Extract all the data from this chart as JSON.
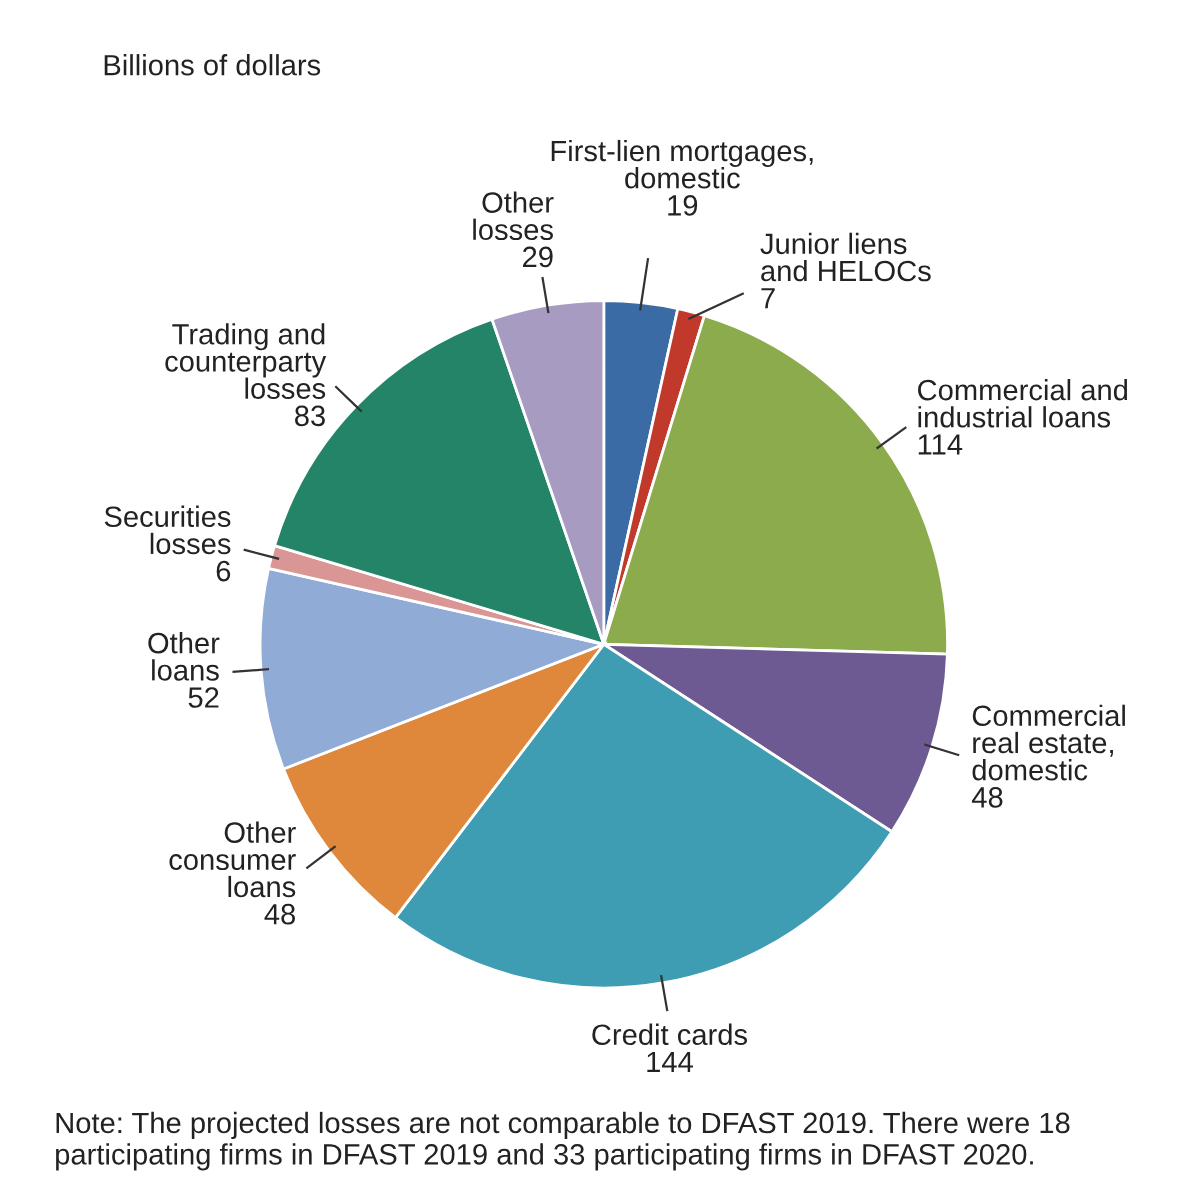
{
  "chart_data": {
    "type": "pie",
    "title": "Billions of dollars",
    "categories": [
      "First-lien mortgages,\ndomestic",
      "Junior liens\nand HELOCs",
      "Commercial and\nindustrial loans",
      "Commercial\nreal estate,\ndomestic",
      "Credit cards",
      "Other\nconsumer\nloans",
      "Other\nloans",
      "Securities\nlosses",
      "Trading and\ncounterparty\nlosses",
      "Other\nlosses"
    ],
    "values": [
      19,
      7,
      114,
      48,
      144,
      48,
      52,
      6,
      83,
      29
    ],
    "colors": [
      "#3b6ba5",
      "#c0392b",
      "#8cab4c",
      "#6d5a93",
      "#3e9db3",
      "#df873a",
      "#8fabd6",
      "#d99694",
      "#248468",
      "#a79bc1"
    ],
    "data_labels": true,
    "annotations": [
      "Note: The projected losses are not comparable to DFAST 2019. There were 18 participating firms in DFAST 2019 and 33 participating firms in DFAST 2020."
    ]
  }
}
